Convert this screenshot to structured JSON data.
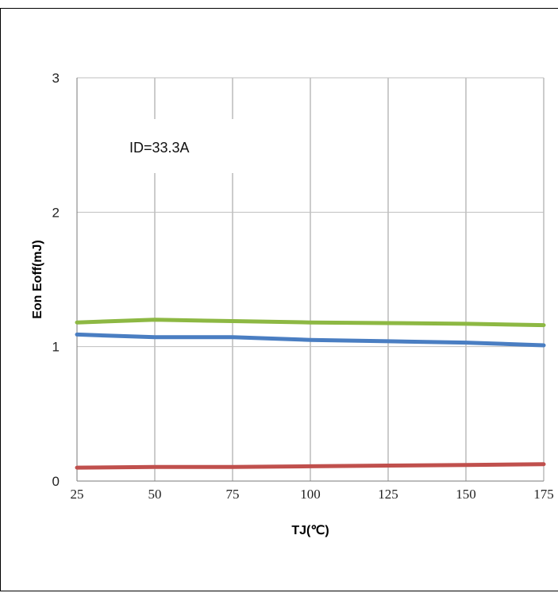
{
  "chart_data": {
    "type": "line",
    "title": "",
    "xlabel": "TJ(℃)",
    "ylabel": "Eon Eoff(mJ)",
    "x": [
      25,
      50,
      75,
      100,
      125,
      150,
      175
    ],
    "xlim": [
      25,
      175
    ],
    "ylim": [
      0,
      3
    ],
    "x_ticks": [
      "25",
      "50",
      "75",
      "100",
      "125",
      "150",
      "175"
    ],
    "y_ticks": [
      "0",
      "1",
      "2",
      "3"
    ],
    "grid": true,
    "legend": "none",
    "annotation": "ID=33.3A",
    "series": [
      {
        "color": "#8db843",
        "values": [
          1.18,
          1.2,
          1.19,
          1.18,
          1.175,
          1.17,
          1.16
        ]
      },
      {
        "color": "#4a7ec2",
        "values": [
          1.09,
          1.07,
          1.07,
          1.05,
          1.04,
          1.03,
          1.01
        ]
      },
      {
        "color": "#c0504d",
        "values": [
          0.1,
          0.105,
          0.105,
          0.11,
          0.115,
          0.12,
          0.125
        ]
      }
    ]
  }
}
